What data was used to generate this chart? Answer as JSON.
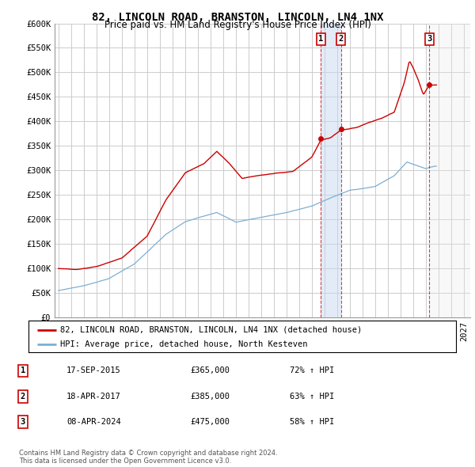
{
  "title": "82, LINCOLN ROAD, BRANSTON, LINCOLN, LN4 1NX",
  "subtitle": "Price paid vs. HM Land Registry's House Price Index (HPI)",
  "ylim": [
    0,
    600000
  ],
  "yticks": [
    0,
    50000,
    100000,
    150000,
    200000,
    250000,
    300000,
    350000,
    400000,
    450000,
    500000,
    550000,
    600000
  ],
  "ytick_labels": [
    "£0",
    "£50K",
    "£100K",
    "£150K",
    "£200K",
    "£250K",
    "£300K",
    "£350K",
    "£400K",
    "£450K",
    "£500K",
    "£550K",
    "£600K"
  ],
  "xlim_start": 1994.7,
  "xlim_end": 2027.5,
  "background_color": "#ffffff",
  "grid_color": "#cccccc",
  "hpi_line_color": "#7bafd4",
  "property_line_color": "#cc0000",
  "sale_dates": [
    2015.71,
    2017.29,
    2024.27
  ],
  "sale_labels": [
    "1",
    "2",
    "3"
  ],
  "sale_prices": [
    365000,
    385000,
    475000
  ],
  "legend_entries": [
    "82, LINCOLN ROAD, BRANSTON, LINCOLN, LN4 1NX (detached house)",
    "HPI: Average price, detached house, North Kesteven"
  ],
  "table_rows": [
    {
      "num": "1",
      "date": "17-SEP-2015",
      "price": "£365,000",
      "change": "72% ↑ HPI"
    },
    {
      "num": "2",
      "date": "18-APR-2017",
      "price": "£385,000",
      "change": "63% ↑ HPI"
    },
    {
      "num": "3",
      "date": "08-APR-2024",
      "price": "£475,000",
      "change": "58% ↑ HPI"
    }
  ],
  "footer": "Contains HM Land Registry data © Crown copyright and database right 2024.\nThis data is licensed under the Open Government Licence v3.0.",
  "title_fontsize": 10,
  "subtitle_fontsize": 8.5,
  "tick_fontsize": 7.5,
  "legend_fontsize": 7.5
}
